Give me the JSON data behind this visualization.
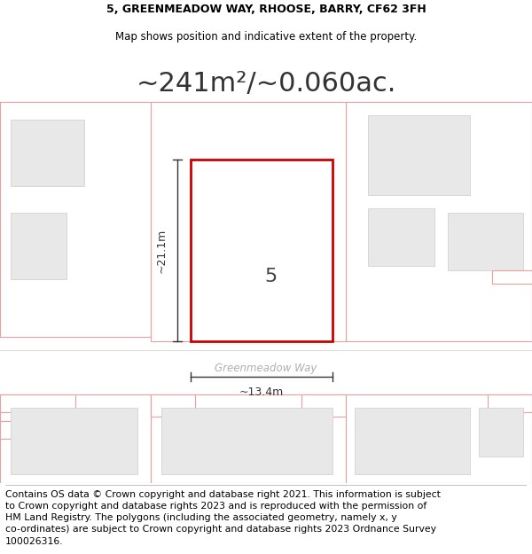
{
  "title_line1": "5, GREENMEADOW WAY, RHOOSE, BARRY, CF62 3FH",
  "title_line2": "Map shows position and indicative extent of the property.",
  "area_text": "~241m²/~0.060ac.",
  "height_label": "~21.1m",
  "width_label": "~13.4m",
  "plot_number": "5",
  "road_label": "Greenmeadow Way",
  "footer_line1": "Contains OS data © Crown copyright and database right 2021. This information is subject",
  "footer_line2": "to Crown copyright and database rights 2023 and is reproduced with the permission of",
  "footer_line3": "HM Land Registry. The polygons (including the associated geometry, namely x, y",
  "footer_line4": "co-ordinates) are subject to Crown copyright and database rights 2023 Ordnance Survey",
  "footer_line5": "100026316.",
  "bg_color": "#ffffff",
  "building_fill": "#e8e8e8",
  "building_edge": "#e8a0a0",
  "plot_edge": "#cc0000",
  "plot_fill": "#ffffff",
  "dim_color": "#333333",
  "road_text_color": "#b0b0b0",
  "title_fontsize": 9,
  "subtitle_fontsize": 8.5,
  "area_fontsize": 22,
  "footer_fontsize": 7.8
}
